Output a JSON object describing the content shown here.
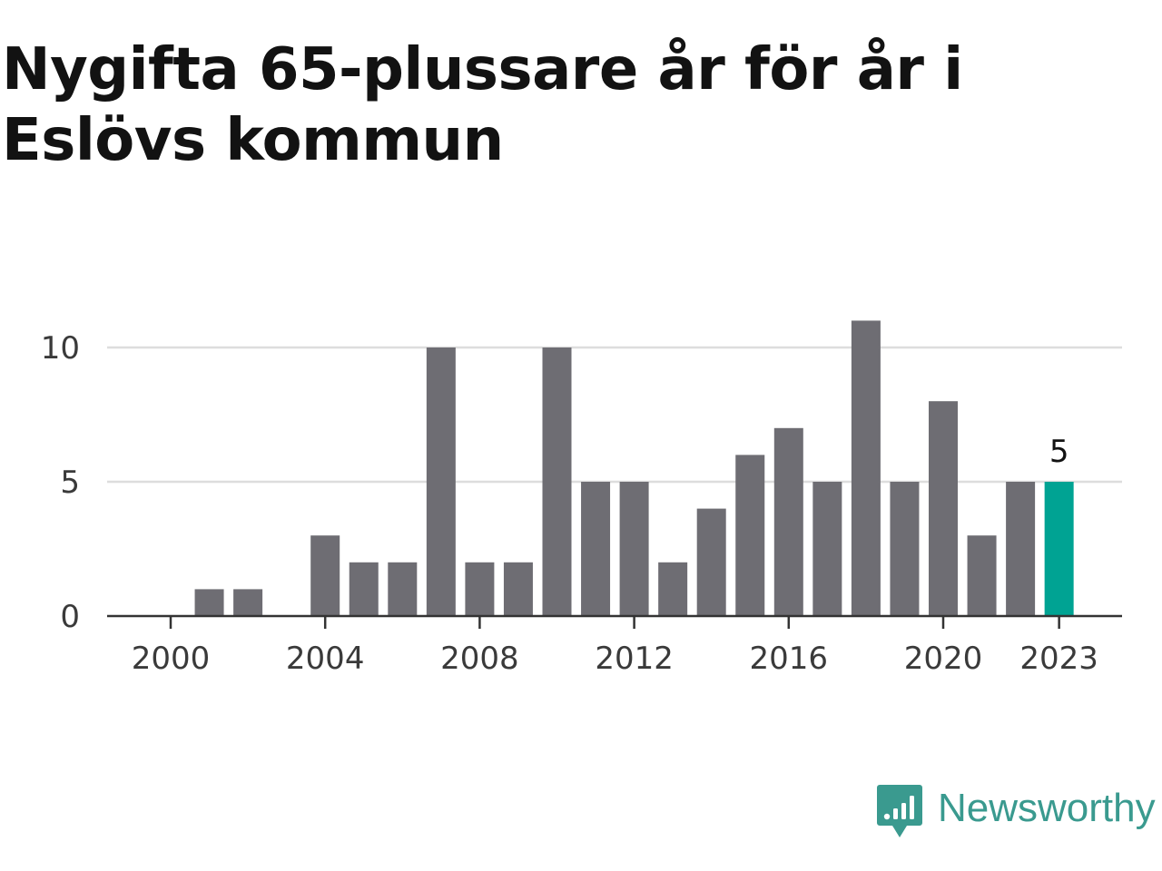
{
  "title": "Nygifta 65-plussare år för år i Eslövs kommun",
  "brand": {
    "name": "Newsworthy",
    "icon": "newsworthy-logo-icon"
  },
  "colors": {
    "bar": "#6e6d73",
    "highlight": "#00a393",
    "grid": "#dddddd",
    "axis": "#333333",
    "brand": "#3a9a8f"
  },
  "chart_data": {
    "type": "bar",
    "title": "Nygifta 65-plussare år för år i Eslövs kommun",
    "xlabel": "",
    "ylabel": "",
    "categories": [
      2000,
      2001,
      2002,
      2003,
      2004,
      2005,
      2006,
      2007,
      2008,
      2009,
      2010,
      2011,
      2012,
      2013,
      2014,
      2015,
      2016,
      2017,
      2018,
      2019,
      2020,
      2021,
      2022,
      2023
    ],
    "values": [
      0,
      1,
      1,
      0,
      3,
      2,
      2,
      10,
      2,
      2,
      10,
      5,
      5,
      2,
      4,
      6,
      7,
      5,
      11,
      5,
      8,
      3,
      5,
      5
    ],
    "highlight_category": 2023,
    "highlight_label": "5",
    "ylim": [
      0,
      11
    ],
    "yticks": [
      0,
      5,
      10
    ],
    "xticks": [
      2000,
      2004,
      2008,
      2012,
      2016,
      2020,
      2023
    ],
    "grid": true,
    "legend": "none"
  }
}
